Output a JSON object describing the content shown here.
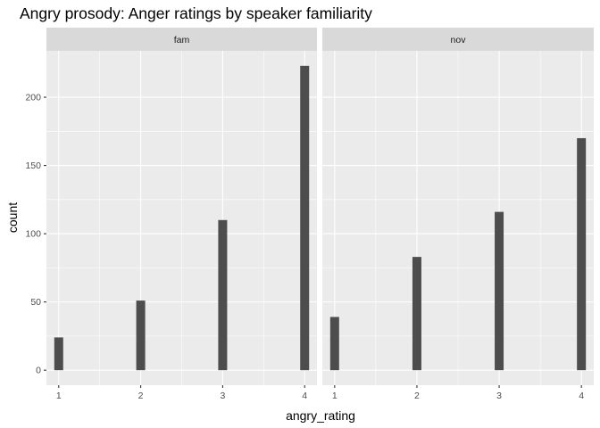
{
  "chart_data": {
    "type": "bar",
    "title": "Angry prosody: Anger ratings by speaker familiarity",
    "xlabel": "angry_rating",
    "ylabel": "count",
    "ylim": [
      -11,
      234
    ],
    "xlim": [
      0.85,
      4.15
    ],
    "x_ticks": [
      1,
      2,
      3,
      4
    ],
    "y_ticks": [
      0,
      50,
      100,
      150,
      200
    ],
    "grid": true,
    "facets": [
      {
        "label": "fam",
        "x": [
          1,
          2,
          3,
          4
        ],
        "values": [
          24,
          51,
          110,
          223
        ]
      },
      {
        "label": "nov",
        "x": [
          1,
          2,
          3,
          4
        ],
        "values": [
          39,
          83,
          116,
          170
        ]
      }
    ],
    "colors": {
      "bar": "#4d4d4d",
      "panel": "#ebebeb",
      "strip": "#d9d9d9",
      "grid": "#ffffff"
    }
  }
}
